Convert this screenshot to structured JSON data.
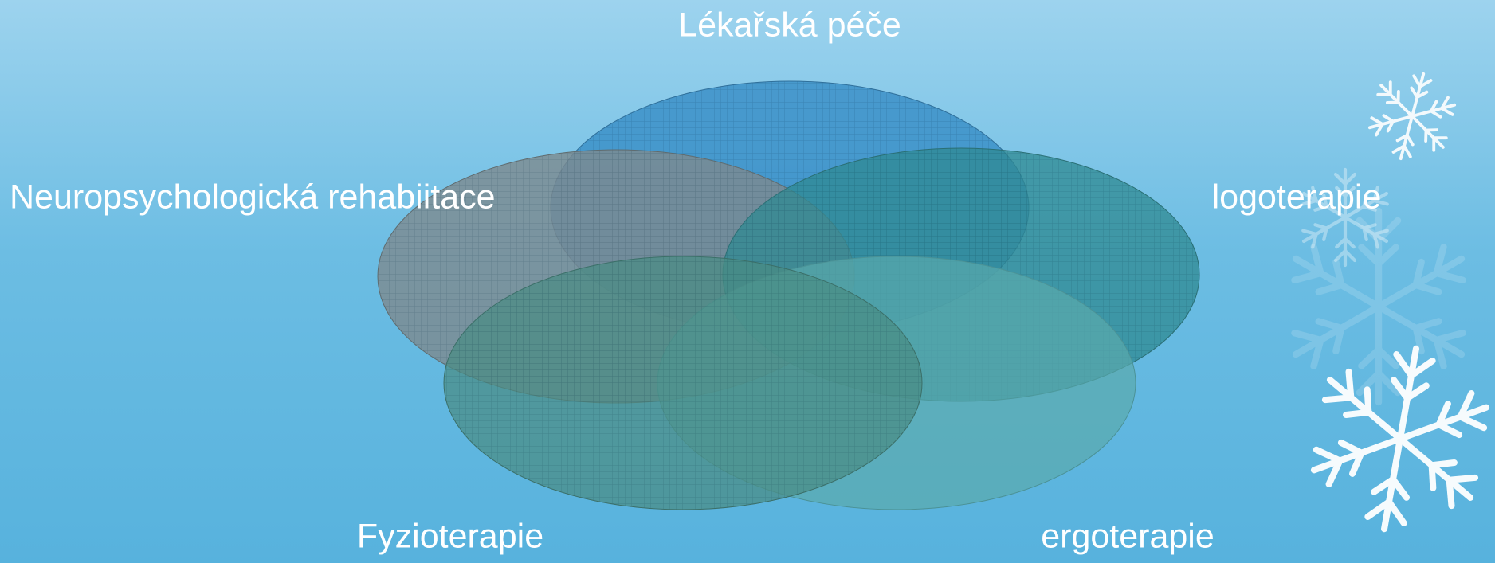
{
  "nodes": [
    {
      "label": "Lékařská péče"
    },
    {
      "label": "Neuropsychologická rehabiitace"
    },
    {
      "label": "logoterapie"
    },
    {
      "label": "Fyzioterapie"
    },
    {
      "label": "ergoterapie"
    }
  ]
}
